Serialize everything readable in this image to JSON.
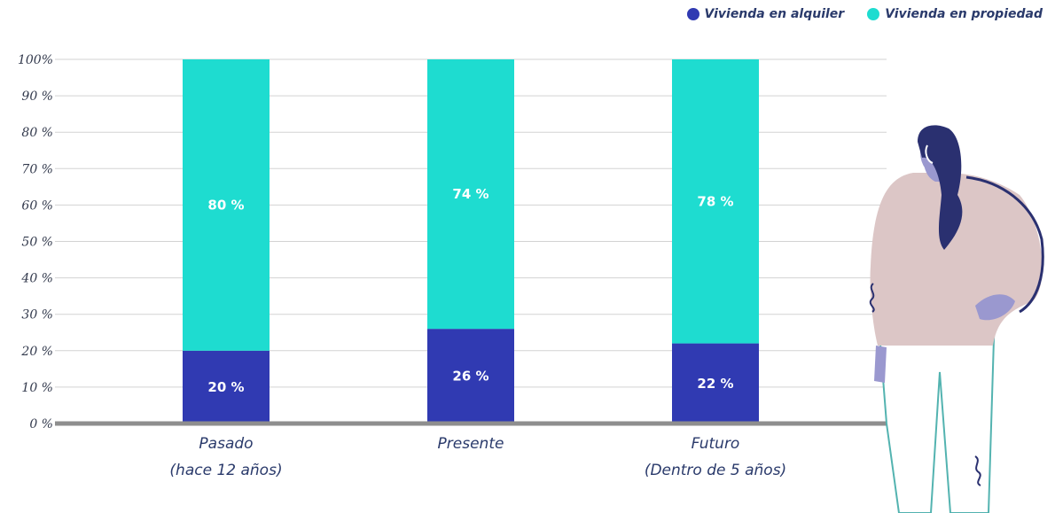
{
  "chart_data": {
    "type": "bar",
    "stacked": true,
    "categories": [
      [
        "Pasado",
        "(hace 12 años)"
      ],
      [
        "Presente",
        ""
      ],
      [
        "Futuro",
        "(Dentro de 5 años)"
      ]
    ],
    "series": [
      {
        "name": "Vivienda en alquiler",
        "color": "#303ab2",
        "values": [
          20,
          26,
          22
        ],
        "labels": [
          "20 %",
          "26 %",
          "22 %"
        ]
      },
      {
        "name": "Vivienda en propiedad",
        "color": "#1edcd0",
        "values": [
          80,
          74,
          78
        ],
        "labels": [
          "80 %",
          "74 %",
          "78 %"
        ]
      }
    ],
    "yticks": [
      "0 %",
      "10 %",
      "20 %",
      "30 %",
      "40 %",
      "50 %",
      "60 %",
      "70 %",
      "80 %",
      "90 %",
      "100%"
    ],
    "ylim": [
      0,
      100
    ],
    "grid": true,
    "legend": "top-right"
  }
}
